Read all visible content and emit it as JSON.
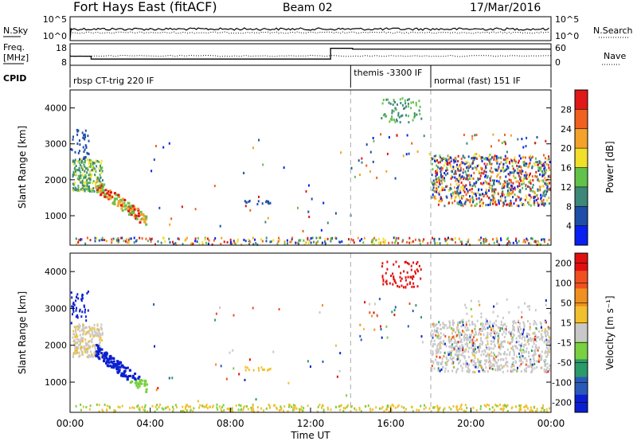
{
  "header": {
    "station": "Fort Hays East (fitACF)",
    "beam": "Beam 02",
    "date": "17/Mar/2016"
  },
  "strip_labels": {
    "nsky": "N.Sky",
    "nsearch": "N.Search",
    "freq_top": "Freq.",
    "freq_unit": "[MHz]",
    "nave": "Nave",
    "cpid": "CPID"
  },
  "nsky_ticks": [
    "10^5",
    "10^0"
  ],
  "nsearch_ticks": [
    "10^5",
    "10^0"
  ],
  "freq_ticks": [
    "18",
    "8"
  ],
  "nave_ticks": [
    "60",
    "0"
  ],
  "cpid_segments": [
    {
      "label": "rbsp CT-trig 220 IF",
      "start_h": 0
    },
    {
      "label": "themis -3300 IF",
      "start_h": 14
    },
    {
      "label": "normal (fast) 151 IF",
      "start_h": 18
    }
  ],
  "chart_data": [
    {
      "type": "heatmap",
      "panel": "power",
      "ylabel": "Slant Range [km]",
      "ylim": [
        180,
        4500
      ],
      "xlim_hours": [
        0,
        24
      ],
      "yticks": [
        1000,
        2000,
        3000,
        4000
      ],
      "colorbar": {
        "label": "Power [dB]",
        "ticks": [
          "4",
          "8",
          "12",
          "16",
          "20",
          "24",
          "28"
        ],
        "colors": [
          "#0a20f0",
          "#1f4ea8",
          "#3d8878",
          "#62c24a",
          "#f0e02a",
          "#f4a22a",
          "#f0601e",
          "#e01818"
        ]
      }
    },
    {
      "type": "heatmap",
      "panel": "velocity",
      "ylabel": "Slant Range [km]",
      "xlabel": "Time UT",
      "ylim": [
        180,
        4500
      ],
      "xlim_hours": [
        0,
        24
      ],
      "yticks": [
        1000,
        2000,
        3000,
        4000
      ],
      "xticks": [
        "00:00",
        "04:00",
        "08:00",
        "12:00",
        "16:00",
        "20:00",
        "00:00"
      ],
      "colorbar": {
        "label": "Velocity [m s⁻¹]",
        "ticks": [
          "200",
          "100",
          "50",
          "15",
          "-15",
          "-50",
          "-100",
          "-200"
        ],
        "colors": [
          "#0a20d0",
          "#2a5ab8",
          "#2a9a6a",
          "#7ad040",
          "#c8c8c8",
          "#f0c030",
          "#f09020",
          "#f05020",
          "#e01010"
        ]
      }
    }
  ]
}
